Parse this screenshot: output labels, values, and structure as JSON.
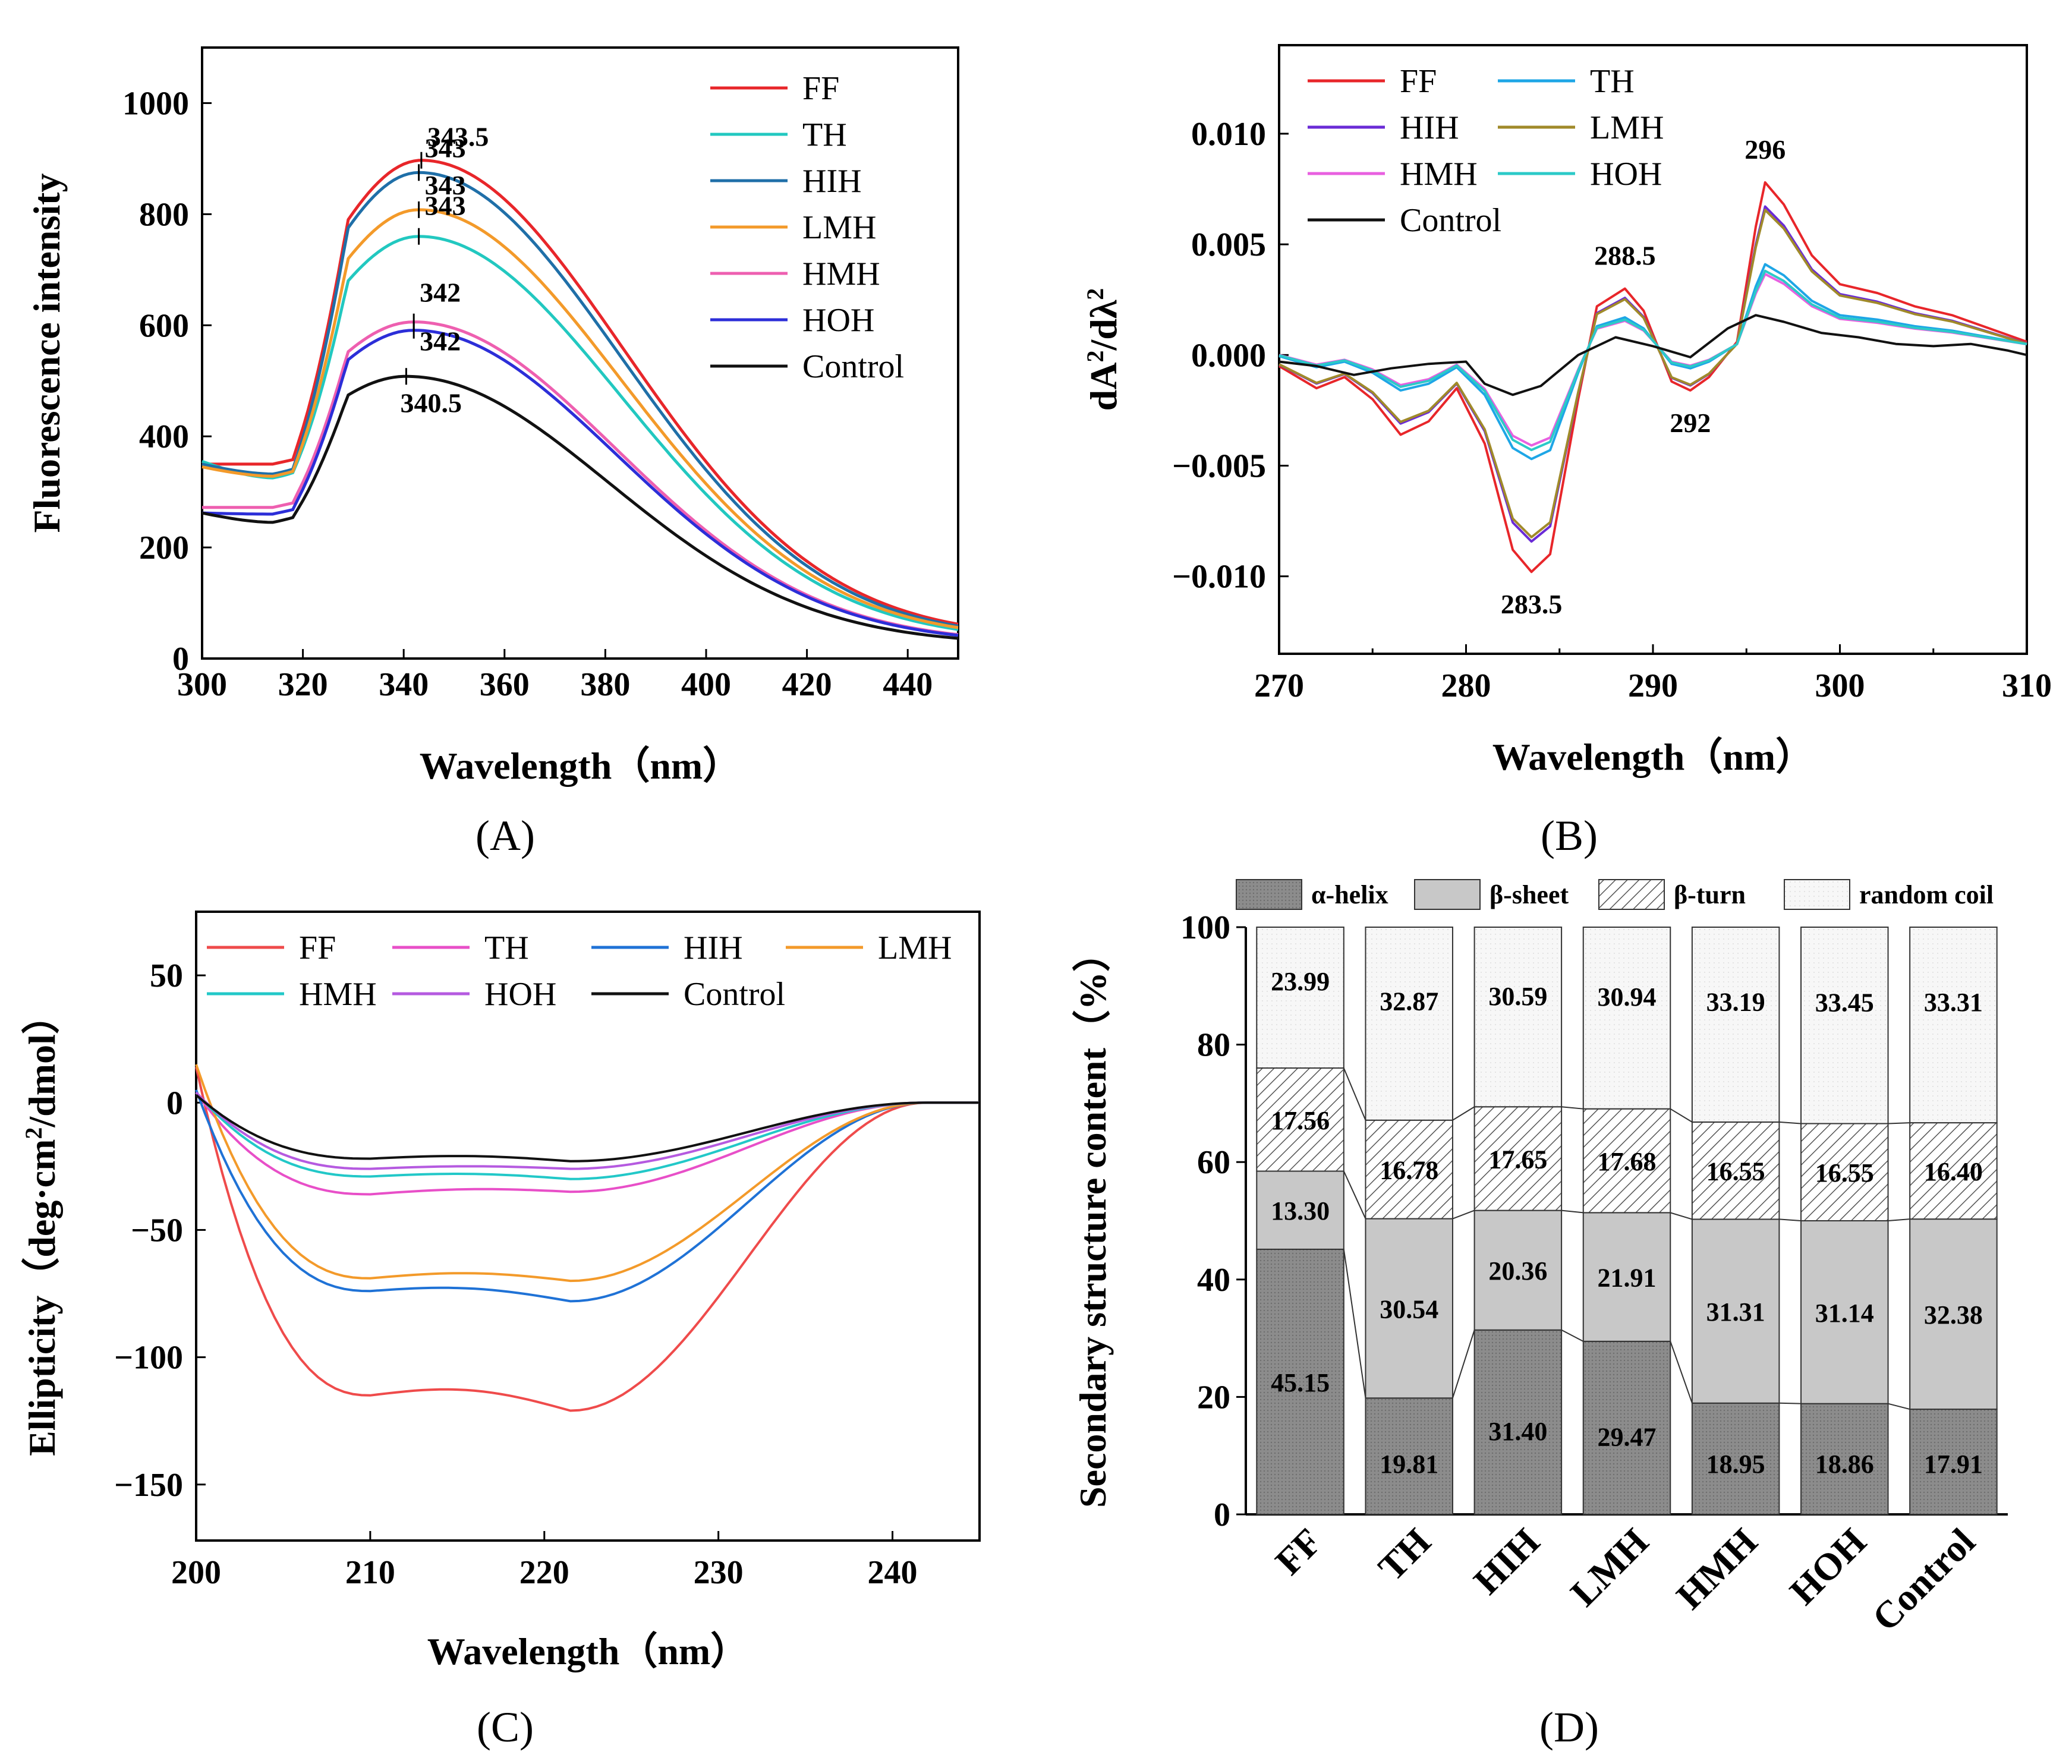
{
  "panels": {
    "A": "(A)",
    "B": "(B)",
    "C": "(C)",
    "D": "(D)"
  },
  "colors": {
    "FF": "#e8262a",
    "TH": "#22c8c0",
    "HIH": "#1f6fa8",
    "LMH": "#f39a2a",
    "HMH": "#ee5fb0",
    "HOH": "#2c2ed8",
    "Control": "#111111",
    "B_FF": "#e8262a",
    "B_TH": "#1ea6e6",
    "B_HIH": "#6a2bd6",
    "B_LMH": "#a08a2a",
    "B_HMH": "#e860e0",
    "B_HOH": "#2ccac8",
    "B_Control": "#111111",
    "C_FF": "#ef4b4b",
    "C_TH": "#e84fc8",
    "C_HIH": "#1f72d6",
    "C_LMH": "#f39a2a",
    "C_HMH": "#22c8c8",
    "C_HOH": "#b55ae0",
    "C_Control": "#111111"
  },
  "chart_data": [
    {
      "id": "A",
      "type": "line",
      "xlabel": "Wavelength（nm）",
      "ylabel": "Fluorescence intensity",
      "xlim": [
        300,
        450
      ],
      "ylim": [
        0,
        1100
      ],
      "xticks": [
        300,
        320,
        340,
        360,
        380,
        400,
        420,
        440
      ],
      "yticks": [
        0,
        200,
        400,
        600,
        800,
        1000
      ],
      "legend_position": "top-right",
      "series": [
        {
          "name": "FF",
          "peak_x": 343.5,
          "peak_y": 897,
          "start_y": 350,
          "dip_y": 350,
          "end_y": 37
        },
        {
          "name": "TH",
          "peak_x": 343,
          "peak_y": 760,
          "start_y": 355,
          "dip_y": 325,
          "end_y": 32
        },
        {
          "name": "HIH",
          "peak_x": 343,
          "peak_y": 875,
          "start_y": 350,
          "dip_y": 332,
          "end_y": 35
        },
        {
          "name": "LMH",
          "peak_x": 343,
          "peak_y": 808,
          "start_y": 345,
          "dip_y": 328,
          "end_y": 34
        },
        {
          "name": "HMH",
          "peak_x": 342,
          "peak_y": 606,
          "start_y": 272,
          "dip_y": 272,
          "end_y": 28
        },
        {
          "name": "HOH",
          "peak_x": 342,
          "peak_y": 591,
          "start_y": 262,
          "dip_y": 260,
          "end_y": 27
        },
        {
          "name": "Control",
          "peak_x": 340.5,
          "peak_y": 508,
          "start_y": 262,
          "dip_y": 245,
          "end_y": 25
        }
      ],
      "annotations": [
        {
          "text": "343.5",
          "x": 343.5,
          "y": 897
        },
        {
          "text": "343",
          "x": 343,
          "y": 875
        },
        {
          "text": "343",
          "x": 343,
          "y": 808
        },
        {
          "text": "343",
          "x": 343,
          "y": 760
        },
        {
          "text": "342",
          "x": 342,
          "y": 606
        },
        {
          "text": "342",
          "x": 342,
          "y": 591
        },
        {
          "text": "340.5",
          "x": 340.5,
          "y": 508
        }
      ]
    },
    {
      "id": "B",
      "type": "line",
      "xlabel": "Wavelength（nm）",
      "ylabel_main": "dA",
      "ylabel_sup1": "2",
      "ylabel_mid": "/dλ",
      "ylabel_sup2": "2",
      "xlim": [
        270,
        310
      ],
      "ylim": [
        -0.0135,
        0.014
      ],
      "xticks": [
        270,
        280,
        290,
        300,
        310
      ],
      "yticks": [
        -0.01,
        -0.005,
        0.0,
        0.005,
        0.01
      ],
      "ytick_labels": [
        "−0.010",
        "−0.005",
        "0.000",
        "0.005",
        "0.010"
      ],
      "legend_position": "top-left",
      "series": [
        {
          "name": "FF",
          "key": "B_FF",
          "scale": 1.0
        },
        {
          "name": "TH",
          "key": "B_TH",
          "scale": 0.5
        },
        {
          "name": "HIH",
          "key": "B_HIH",
          "scale": 0.86
        },
        {
          "name": "LMH",
          "key": "B_LMH",
          "scale": 0.84
        },
        {
          "name": "HMH",
          "key": "B_HMH",
          "scale": 0.44
        },
        {
          "name": "HOH",
          "key": "B_HOH",
          "scale": 0.46
        },
        {
          "name": "Control",
          "key": "B_Control",
          "scale": 0.0
        }
      ],
      "template_points": [
        [
          270,
          -0.0005
        ],
        [
          272,
          -0.0015
        ],
        [
          273.5,
          -0.001
        ],
        [
          275,
          -0.002
        ],
        [
          276.5,
          -0.0036
        ],
        [
          278,
          -0.003
        ],
        [
          279.5,
          -0.0015
        ],
        [
          281,
          -0.004
        ],
        [
          282.5,
          -0.0088
        ],
        [
          283.5,
          -0.0098
        ],
        [
          284.5,
          -0.009
        ],
        [
          286,
          -0.002
        ],
        [
          287,
          0.0022
        ],
        [
          288.5,
          0.003
        ],
        [
          289.5,
          0.002
        ],
        [
          291,
          -0.0012
        ],
        [
          292,
          -0.0016
        ],
        [
          293,
          -0.001
        ],
        [
          294.5,
          0.0006
        ],
        [
          295.5,
          0.0058
        ],
        [
          296,
          0.0078
        ],
        [
          297,
          0.0068
        ],
        [
          298.5,
          0.0045
        ],
        [
          300,
          0.0032
        ],
        [
          302,
          0.0028
        ],
        [
          304,
          0.0022
        ],
        [
          306,
          0.0018
        ],
        [
          308,
          0.0012
        ],
        [
          310,
          0.0006
        ]
      ],
      "control_points": [
        [
          270,
          -0.0003
        ],
        [
          272,
          -0.0005
        ],
        [
          274,
          -0.0009
        ],
        [
          276,
          -0.0006
        ],
        [
          278,
          -0.0004
        ],
        [
          280,
          -0.0003
        ],
        [
          281,
          -0.0013
        ],
        [
          282.5,
          -0.0018
        ],
        [
          284,
          -0.0014
        ],
        [
          286,
          0.0
        ],
        [
          288,
          0.0008
        ],
        [
          290,
          0.0004
        ],
        [
          292,
          -0.0001
        ],
        [
          294,
          0.0012
        ],
        [
          295.5,
          0.0018
        ],
        [
          297,
          0.0015
        ],
        [
          299,
          0.001
        ],
        [
          301,
          0.0008
        ],
        [
          303,
          0.0005
        ],
        [
          305,
          0.0004
        ],
        [
          307,
          0.0005
        ],
        [
          309,
          0.0002
        ],
        [
          310,
          0.0
        ]
      ],
      "annotations": [
        {
          "text": "296",
          "x": 296,
          "y": 0.0078
        },
        {
          "text": "288.5",
          "x": 288.5,
          "y": 0.003
        },
        {
          "text": "292",
          "x": 292,
          "y": -0.0016
        },
        {
          "text": "283.5",
          "x": 283.5,
          "y": -0.0098
        }
      ]
    },
    {
      "id": "C",
      "type": "line",
      "xlabel": "Wavelength（nm）",
      "ylabel_main": "Ellipticity（deg·cm",
      "ylabel_sup": "2",
      "ylabel_tail": "/dmol）",
      "xlim": [
        200,
        245
      ],
      "ylim": [
        -172,
        75
      ],
      "xticks": [
        200,
        210,
        220,
        230,
        240
      ],
      "yticks": [
        -150,
        -100,
        -50,
        0,
        50
      ],
      "ytick_labels": [
        "−150",
        "−100",
        "−50",
        "0",
        "50"
      ],
      "legend_position": "top",
      "series": [
        {
          "name": "FF",
          "key": "C_FF",
          "start": 14,
          "min1": -115,
          "min2": -121,
          "plateau": -113
        },
        {
          "name": "TH",
          "key": "C_TH",
          "start": 4,
          "min1": -36,
          "min2": -35,
          "plateau": -34
        },
        {
          "name": "HIH",
          "key": "C_HIH",
          "start": 5,
          "min1": -74,
          "min2": -78,
          "plateau": -73
        },
        {
          "name": "LMH",
          "key": "C_LMH",
          "start": 15,
          "min1": -69,
          "min2": -70,
          "plateau": -67
        },
        {
          "name": "HMH",
          "key": "C_HMH",
          "start": 4,
          "min1": -29,
          "min2": -30,
          "plateau": -28
        },
        {
          "name": "HOH",
          "key": "C_HOH",
          "start": 4,
          "min1": -26,
          "min2": -26,
          "plateau": -25
        },
        {
          "name": "Control",
          "key": "C_Control",
          "start": 3,
          "min1": -22,
          "min2": -23,
          "plateau": -21
        }
      ]
    },
    {
      "id": "D",
      "type": "bar",
      "stacked": true,
      "ylabel": "Secondary structure content（%）",
      "ylim": [
        0,
        100
      ],
      "yticks": [
        0,
        20,
        40,
        60,
        80,
        100
      ],
      "categories": [
        "FF",
        "TH",
        "HIH",
        "LMH",
        "HMH",
        "HOH",
        "Control"
      ],
      "legend": [
        "α-helix",
        "β-sheet",
        "β-turn",
        "random coil"
      ],
      "series": [
        {
          "name": "α-helix",
          "values": [
            45.15,
            19.81,
            31.4,
            29.47,
            18.95,
            18.86,
            17.91
          ]
        },
        {
          "name": "β-sheet",
          "values": [
            13.3,
            30.54,
            20.36,
            21.91,
            31.31,
            31.14,
            32.38
          ]
        },
        {
          "name": "β-turn",
          "values": [
            17.56,
            16.78,
            17.65,
            17.68,
            16.55,
            16.55,
            16.4
          ]
        },
        {
          "name": "random coil",
          "values": [
            23.99,
            32.87,
            30.59,
            30.94,
            33.19,
            33.45,
            33.31
          ]
        }
      ],
      "labels": {
        "alpha": [
          "45.15",
          "19.81",
          "31.40",
          "29.47",
          "18.95",
          "18.86",
          "17.91"
        ],
        "beta_sheet": [
          "13.30",
          "30.54",
          "20.36",
          "21.91",
          "31.31",
          "31.14",
          "32.38"
        ],
        "beta_turn": [
          "17.56",
          "16.78",
          "17.65",
          "17.68",
          "16.55",
          "16.55",
          "16.40"
        ],
        "coil": [
          "23.99",
          "32.87",
          "30.59",
          "30.94",
          "33.19",
          "33.45",
          "33.31"
        ]
      }
    }
  ]
}
